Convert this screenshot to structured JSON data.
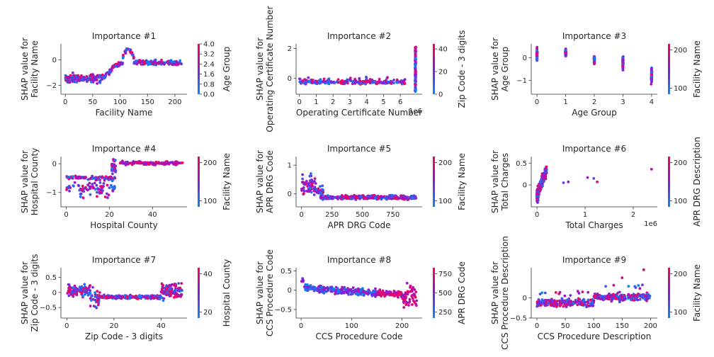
{
  "figure": {
    "background": "#ffffff",
    "color_low": "#008bfb",
    "color_high": "#ff0052"
  },
  "chart_data": [
    {
      "type": "scatter",
      "title": "Importance #1",
      "xlabel": "Facility Name",
      "ylabel": [
        "SHAP value for",
        "Facility Name"
      ],
      "xlim": [
        -8,
        222
      ],
      "ylim": [
        -2.7,
        1.25
      ],
      "xticks": [
        0,
        50,
        100,
        150,
        200
      ],
      "yticks": [
        -2,
        0
      ],
      "color_label": "Age Group",
      "color_ticks": [
        "0.0",
        "0.8",
        "1.6",
        "2.4",
        "3.2",
        "4.0"
      ],
      "exponent": "",
      "series": [
        {
          "name": "Age Group",
          "pattern": "facility"
        }
      ]
    },
    {
      "type": "scatter",
      "title": "Importance #2",
      "xlabel": "Operating Certificate Number",
      "ylabel": [
        "SHAP value for",
        "Operating Certificate Number"
      ],
      "xlim": [
        -0.2,
        7.3
      ],
      "ylim": [
        -1.05,
        2.3
      ],
      "xticks": [
        0,
        1,
        2,
        3,
        4,
        5,
        6
      ],
      "yticks": [
        0,
        2
      ],
      "color_label": "Zip Code - 3 digits",
      "color_ticks": [
        "0",
        "20",
        "40"
      ],
      "exponent": "1e6",
      "series": [
        {
          "name": "Zip Code - 3 digits",
          "pattern": "opcert"
        }
      ]
    },
    {
      "type": "scatter",
      "title": "Importance #3",
      "xlabel": "Age Group",
      "ylabel": [
        "SHAP value for",
        "Age Group"
      ],
      "xlim": [
        -0.2,
        4.2
      ],
      "ylim": [
        -1.6,
        0.6
      ],
      "xticks": [
        0,
        1,
        2,
        3,
        4
      ],
      "yticks": [
        -1,
        0
      ],
      "color_label": "Facility Name",
      "color_ticks": [
        "100",
        "200"
      ],
      "exponent": "",
      "series": [
        {
          "name": "Facility Name",
          "pattern": "age"
        }
      ]
    },
    {
      "type": "scatter",
      "title": "Importance #4",
      "xlabel": "Hospital County",
      "ylabel": [
        "SHAP value for",
        "Hospital County"
      ],
      "xlim": [
        -2.5,
        56
      ],
      "ylim": [
        -1.5,
        0.25
      ],
      "xticks": [
        0,
        20,
        40
      ],
      "yticks": [
        -1,
        0
      ],
      "color_label": "Facility Name",
      "color_ticks": [
        "100",
        "200"
      ],
      "exponent": "",
      "series": [
        {
          "name": "Facility Name",
          "pattern": "county"
        }
      ]
    },
    {
      "type": "scatter",
      "title": "Importance #5",
      "xlabel": "APR DRG Code",
      "ylabel": [
        "SHAP value for",
        "APR DRG Code"
      ],
      "xlim": [
        -45,
        990
      ],
      "ylim": [
        -0.45,
        1.3
      ],
      "xticks": [
        0,
        250,
        500,
        750
      ],
      "yticks": [
        0,
        1
      ],
      "color_label": "Facility Name",
      "color_ticks": [
        "100",
        "200"
      ],
      "exponent": "",
      "series": [
        {
          "name": "Facility Name",
          "pattern": "drg"
        }
      ]
    },
    {
      "type": "scatter",
      "title": "Importance #6",
      "xlabel": "Total Charges",
      "ylabel": [
        "SHAP value for",
        "Total Charges"
      ],
      "xlim": [
        -0.12,
        2.5
      ],
      "ylim": [
        -0.5,
        0.65
      ],
      "xticks": [
        0,
        1,
        2
      ],
      "yticks": [
        0,
        0.5
      ],
      "color_label": "APR DRG Description",
      "color_ticks": [
        "100",
        "200"
      ],
      "exponent": "1e6",
      "series": [
        {
          "name": "APR DRG Description",
          "pattern": "charges"
        }
      ]
    },
    {
      "type": "scatter",
      "title": "Importance #7",
      "xlabel": "Zip Code - 3 digits",
      "ylabel": [
        "SHAP value for",
        "Zip Code - 3 digits"
      ],
      "xlim": [
        -2.5,
        51
      ],
      "ylim": [
        -0.85,
        0.82
      ],
      "xticks": [
        0,
        20,
        40
      ],
      "yticks": [
        -0.5,
        0,
        0.5
      ],
      "color_label": "Hospital County",
      "color_ticks": [
        "20",
        "40"
      ],
      "exponent": "",
      "series": [
        {
          "name": "Hospital County",
          "pattern": "zip"
        }
      ]
    },
    {
      "type": "scatter",
      "title": "Importance #8",
      "xlabel": "CCS Procedure Code",
      "ylabel": [
        "SHAP value for",
        "CCS Procedure Code"
      ],
      "xlim": [
        -10,
        240
      ],
      "ylim": [
        -0.72,
        0.58
      ],
      "xticks": [
        0,
        100,
        200
      ],
      "yticks": [
        -0.5,
        0,
        0.5
      ],
      "color_label": "APR DRG Code",
      "color_ticks": [
        "250",
        "500",
        "750"
      ],
      "exponent": "",
      "series": [
        {
          "name": "APR DRG Code",
          "pattern": "ccs"
        }
      ]
    },
    {
      "type": "scatter",
      "title": "Importance #9",
      "xlabel": "CCS Procedure Description",
      "ylabel": [
        "SHAP value for",
        "CCS Procedure Description"
      ],
      "xlim": [
        -10,
        212
      ],
      "ylim": [
        -0.5,
        0.75
      ],
      "xticks": [
        0,
        50,
        100,
        150,
        200
      ],
      "yticks": [
        -0.5,
        0
      ],
      "color_label": "Facility Name",
      "color_ticks": [
        "100",
        "200"
      ],
      "exponent": "",
      "series": [
        {
          "name": "Facility Name",
          "pattern": "ccsdesc"
        }
      ]
    }
  ]
}
